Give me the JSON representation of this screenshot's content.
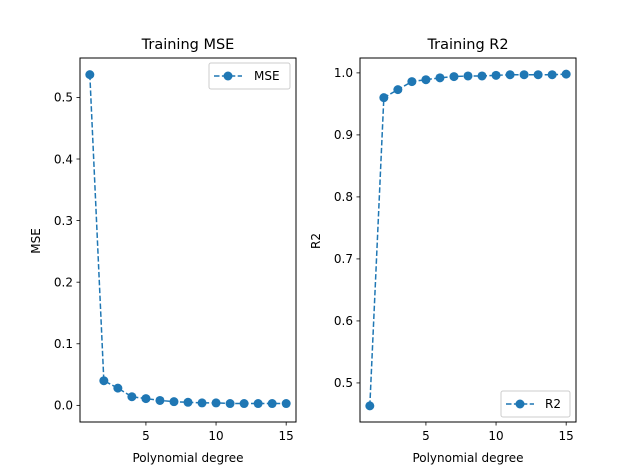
{
  "chart_data": [
    {
      "type": "line",
      "title": "Training MSE",
      "xlabel": "Polynomial degree",
      "ylabel": "MSE",
      "xlim": [
        0.3,
        15.7
      ],
      "ylim": [
        -0.027,
        0.564
      ],
      "xticks": [
        5,
        10,
        15
      ],
      "yticks": [
        0.0,
        0.1,
        0.2,
        0.3,
        0.4,
        0.5
      ],
      "ytick_labels": [
        "0.0",
        "0.1",
        "0.2",
        "0.3",
        "0.4",
        "0.5"
      ],
      "grid": false,
      "legend_position": "upper-right",
      "series": [
        {
          "name": "MSE",
          "color": "#1f77b4",
          "linestyle": "dashed",
          "marker": "circle",
          "x": [
            1,
            2,
            3,
            4,
            5,
            6,
            7,
            8,
            9,
            10,
            11,
            12,
            13,
            14,
            15
          ],
          "y": [
            0.537,
            0.04,
            0.028,
            0.014,
            0.011,
            0.008,
            0.006,
            0.005,
            0.004,
            0.004,
            0.003,
            0.003,
            0.003,
            0.003,
            0.003
          ]
        }
      ]
    },
    {
      "type": "line",
      "title": "Training R2",
      "xlabel": "Polynomial degree",
      "ylabel": "R2",
      "xlim": [
        0.3,
        15.7
      ],
      "ylim": [
        0.437,
        1.024
      ],
      "xticks": [
        5,
        10,
        15
      ],
      "yticks": [
        0.5,
        0.6,
        0.7,
        0.8,
        0.9,
        1.0
      ],
      "ytick_labels": [
        "0.5",
        "0.6",
        "0.7",
        "0.8",
        "0.9",
        "1.0"
      ],
      "grid": false,
      "legend_position": "lower-right",
      "series": [
        {
          "name": "R2",
          "color": "#1f77b4",
          "linestyle": "dashed",
          "marker": "circle",
          "x": [
            1,
            2,
            3,
            4,
            5,
            6,
            7,
            8,
            9,
            10,
            11,
            12,
            13,
            14,
            15
          ],
          "y": [
            0.463,
            0.96,
            0.973,
            0.986,
            0.989,
            0.992,
            0.994,
            0.995,
            0.995,
            0.996,
            0.997,
            0.997,
            0.997,
            0.997,
            0.998
          ]
        }
      ]
    }
  ]
}
